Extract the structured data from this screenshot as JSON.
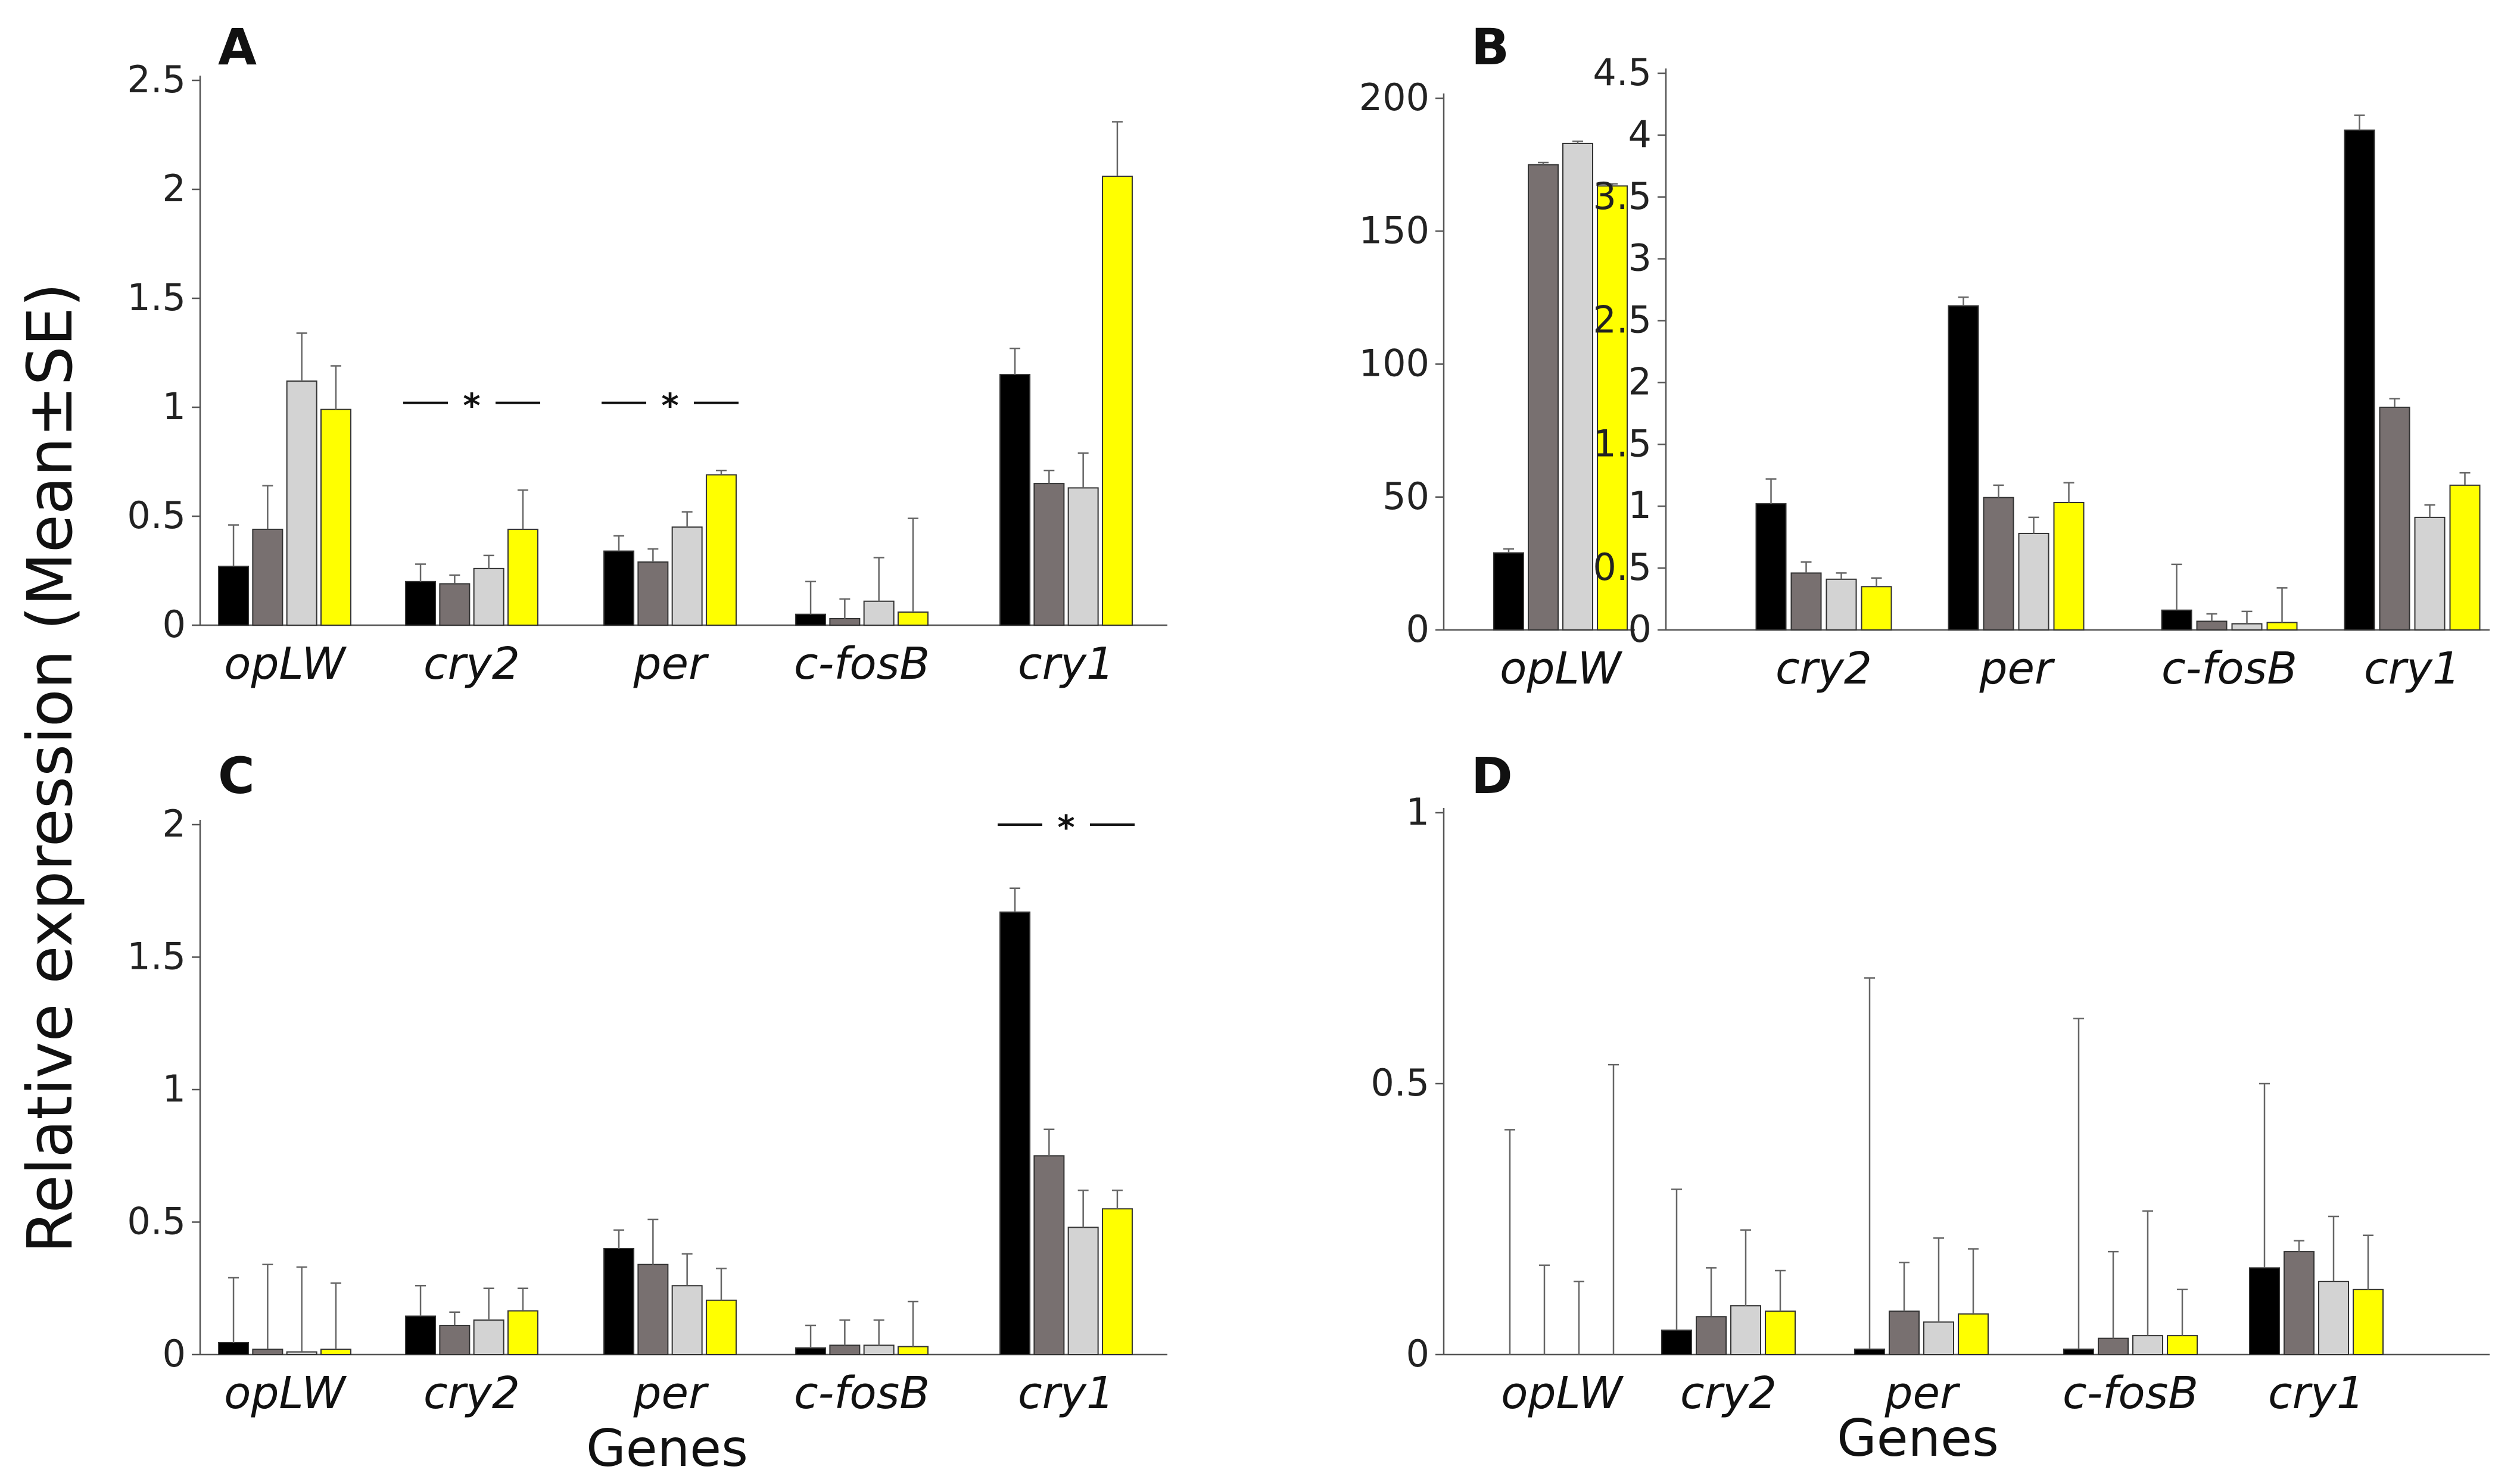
{
  "figure": {
    "ylabel": "Relative expression (Mean±SE)",
    "colors": [
      "#000000",
      "#787070",
      "#d3d3d3",
      "#ffff00"
    ]
  },
  "chart_data": [
    {
      "panel": "A",
      "type": "bar",
      "categories": [
        "opLW",
        "cry2",
        "per",
        "c-fosB",
        "cry1"
      ],
      "ylim": [
        0,
        2.5
      ],
      "yticks": [
        "0",
        "0.5",
        "1",
        "1.5",
        "2",
        "2.5"
      ],
      "series": [
        {
          "name": "series-1",
          "color": "#000000",
          "values": [
            0.27,
            0.2,
            0.34,
            0.05,
            1.15
          ],
          "errors": [
            0.19,
            0.08,
            0.07,
            0.15,
            0.12
          ]
        },
        {
          "name": "series-2",
          "color": "#787070",
          "values": [
            0.44,
            0.19,
            0.29,
            0.03,
            0.65
          ],
          "errors": [
            0.2,
            0.04,
            0.06,
            0.09,
            0.06
          ]
        },
        {
          "name": "series-3",
          "color": "#d3d3d3",
          "values": [
            1.12,
            0.26,
            0.45,
            0.11,
            0.63
          ],
          "errors": [
            0.22,
            0.06,
            0.07,
            0.2,
            0.16
          ]
        },
        {
          "name": "series-4",
          "color": "#ffff00",
          "values": [
            0.99,
            0.44,
            0.69,
            0.06,
            2.06
          ],
          "errors": [
            0.2,
            0.18,
            0.02,
            0.43,
            0.25
          ]
        }
      ],
      "significance": [
        {
          "category": "cry2",
          "value": 1.02,
          "label": "*"
        },
        {
          "category": "per",
          "value": 1.02,
          "label": "*"
        }
      ],
      "xlabel": ""
    },
    {
      "panel": "B",
      "type": "bar",
      "categories": [
        "opLW"
      ],
      "ylim": [
        0,
        200
      ],
      "yticks": [
        "0",
        "50",
        "100",
        "150",
        "200"
      ],
      "series": [
        {
          "name": "series-1",
          "color": "#000000",
          "values": [
            29
          ],
          "errors": [
            1.5
          ]
        },
        {
          "name": "series-2",
          "color": "#787070",
          "values": [
            175
          ],
          "errors": [
            0.8
          ]
        },
        {
          "name": "series-3",
          "color": "#d3d3d3",
          "values": [
            183
          ],
          "errors": [
            0.8
          ]
        },
        {
          "name": "series-4",
          "color": "#ffff00",
          "values": [
            167
          ],
          "errors": [
            0.8
          ]
        }
      ],
      "xlabel": ""
    },
    {
      "panel": "B-inset",
      "type": "bar",
      "categories": [
        "cry2",
        "per",
        "c-fosB",
        "cry1"
      ],
      "ylim": [
        0,
        4.5
      ],
      "yticks": [
        "0",
        "0.5",
        "1",
        "1.5",
        "2",
        "2.5",
        "3",
        "3.5",
        "4",
        "4.5"
      ],
      "series": [
        {
          "name": "series-1",
          "color": "#000000",
          "values": [
            1.02,
            2.62,
            0.16,
            4.04
          ],
          "errors": [
            0.2,
            0.07,
            0.37,
            0.12
          ]
        },
        {
          "name": "series-2",
          "color": "#787070",
          "values": [
            0.46,
            1.07,
            0.07,
            1.8
          ],
          "errors": [
            0.09,
            0.1,
            0.06,
            0.07
          ]
        },
        {
          "name": "series-3",
          "color": "#d3d3d3",
          "values": [
            0.41,
            0.78,
            0.05,
            0.91
          ],
          "errors": [
            0.05,
            0.13,
            0.1,
            0.1
          ]
        },
        {
          "name": "series-4",
          "color": "#ffff00",
          "values": [
            0.35,
            1.03,
            0.06,
            1.17
          ],
          "errors": [
            0.07,
            0.16,
            0.28,
            0.1
          ]
        }
      ],
      "xlabel": ""
    },
    {
      "panel": "C",
      "type": "bar",
      "categories": [
        "opLW",
        "cry2",
        "per",
        "c-fosB",
        "cry1"
      ],
      "ylim": [
        0,
        2
      ],
      "yticks": [
        "0",
        "0.5",
        "1",
        "1.5",
        "2"
      ],
      "series": [
        {
          "name": "series-1",
          "color": "#000000",
          "values": [
            0.045,
            0.145,
            0.4,
            0.025,
            1.67
          ],
          "errors": [
            0.245,
            0.115,
            0.07,
            0.085,
            0.09
          ]
        },
        {
          "name": "series-2",
          "color": "#787070",
          "values": [
            0.02,
            0.11,
            0.34,
            0.035,
            0.75
          ],
          "errors": [
            0.32,
            0.05,
            0.17,
            0.095,
            0.1
          ]
        },
        {
          "name": "series-3",
          "color": "#d3d3d3",
          "values": [
            0.01,
            0.13,
            0.26,
            0.035,
            0.48
          ],
          "errors": [
            0.32,
            0.12,
            0.12,
            0.095,
            0.14
          ]
        },
        {
          "name": "series-4",
          "color": "#ffff00",
          "values": [
            0.02,
            0.165,
            0.205,
            0.03,
            0.55
          ],
          "errors": [
            0.25,
            0.085,
            0.12,
            0.17,
            0.07
          ]
        }
      ],
      "significance": [
        {
          "category": "cry1",
          "value": 2.0,
          "label": "*"
        }
      ],
      "xlabel": "Genes"
    },
    {
      "panel": "D",
      "type": "bar",
      "categories": [
        "opLW",
        "cry2",
        "per",
        "c-fosB",
        "cry1"
      ],
      "ylim": [
        0,
        1
      ],
      "yticks": [
        "0",
        "0.5",
        "1"
      ],
      "series": [
        {
          "name": "series-1",
          "color": "#000000",
          "values": [
            0.0,
            0.045,
            0.01,
            0.01,
            0.16
          ],
          "errors": [
            0.415,
            0.26,
            0.685,
            0.61,
            0.34
          ]
        },
        {
          "name": "series-2",
          "color": "#787070",
          "values": [
            0.0,
            0.07,
            0.08,
            0.03,
            0.19
          ],
          "errors": [
            0.165,
            0.09,
            0.09,
            0.16,
            0.02
          ]
        },
        {
          "name": "series-3",
          "color": "#d3d3d3",
          "values": [
            0.0,
            0.09,
            0.06,
            0.035,
            0.135
          ],
          "errors": [
            0.135,
            0.14,
            0.155,
            0.23,
            0.12
          ]
        },
        {
          "name": "series-4",
          "color": "#ffff00",
          "values": [
            0.0,
            0.08,
            0.075,
            0.035,
            0.12
          ],
          "errors": [
            0.535,
            0.075,
            0.12,
            0.085,
            0.1
          ]
        }
      ],
      "xlabel": "Genes"
    }
  ]
}
